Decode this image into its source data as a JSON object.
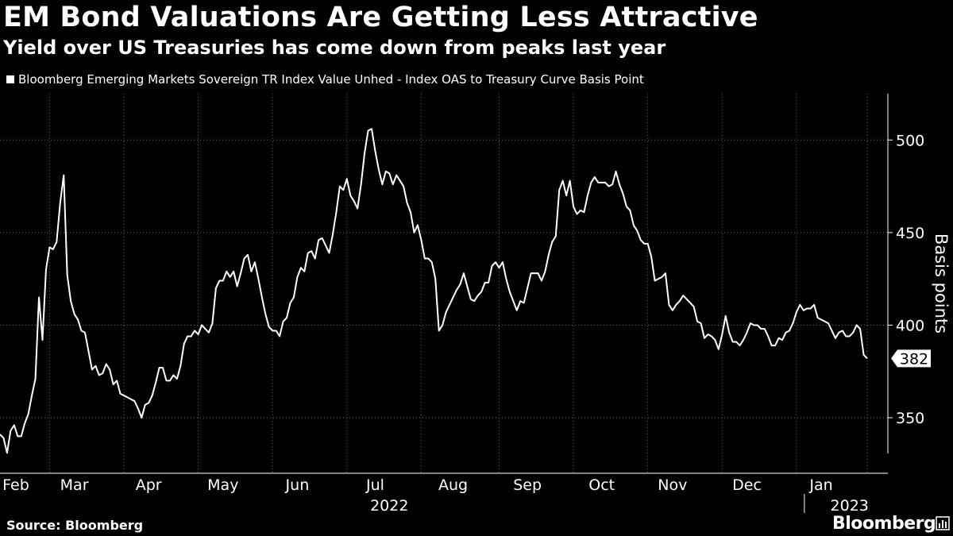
{
  "title": "EM Bond Valuations Are Getting Less Attractive",
  "subtitle": "Yield over US Treasuries has come down from peaks last year",
  "source": "Source: Bloomberg",
  "brand": "Bloomberg",
  "colors": {
    "background": "#000000",
    "line": "#ffffff",
    "grid": "#666666"
  },
  "chart_data": {
    "type": "line",
    "series": [
      {
        "name": "Bloomberg Emerging Markets Sovereign TR Index Value Unhed - Index OAS to Treasury Curve Basis Point",
        "values": [
          341,
          339,
          331,
          343,
          346,
          340,
          340,
          347,
          352,
          362,
          371,
          415,
          392,
          430,
          442,
          441,
          445,
          466,
          481,
          427,
          413,
          406,
          403,
          397,
          396,
          386,
          376,
          378,
          373,
          374,
          379,
          376,
          368,
          370,
          363,
          362,
          361,
          360,
          359,
          355,
          350,
          357,
          358,
          362,
          369,
          377,
          377,
          370,
          370,
          373,
          371,
          378,
          390,
          394,
          394,
          397,
          395,
          400,
          398,
          396,
          401,
          420,
          424,
          424,
          429,
          426,
          429,
          421,
          428,
          436,
          438,
          429,
          434,
          425,
          415,
          406,
          399,
          397,
          397,
          394,
          402,
          404,
          412,
          415,
          426,
          431,
          429,
          439,
          440,
          436,
          446,
          447,
          443,
          439,
          449,
          461,
          475,
          473,
          479,
          470,
          467,
          463,
          476,
          493,
          505,
          506,
          494,
          484,
          476,
          483,
          482,
          476,
          481,
          478,
          475,
          466,
          461,
          450,
          454,
          446,
          436,
          436,
          434,
          425,
          397,
          400,
          407,
          411,
          415,
          419,
          422,
          428,
          421,
          414,
          413,
          416,
          418,
          423,
          423,
          432,
          434,
          431,
          434,
          425,
          418,
          413,
          408,
          413,
          412,
          420,
          428,
          428,
          428,
          424,
          429,
          438,
          445,
          448,
          473,
          478,
          470,
          478,
          464,
          460,
          462,
          461,
          470,
          477,
          480,
          477,
          477,
          477,
          475,
          476,
          483,
          476,
          471,
          464,
          462,
          454,
          451,
          446,
          444,
          444,
          437,
          424,
          425,
          426,
          428,
          411,
          408,
          411,
          413,
          416,
          414,
          412,
          410,
          402,
          401,
          393,
          395,
          394,
          392,
          387,
          395,
          405,
          396,
          391,
          391,
          389,
          392,
          396,
          401,
          400,
          400,
          398,
          398,
          394,
          389,
          389,
          393,
          392,
          396,
          397,
          401,
          407,
          411,
          408,
          409,
          409,
          411,
          404,
          403,
          402,
          401,
          397,
          393,
          396,
          397,
          394,
          394,
          396,
          400,
          398,
          384,
          382
        ],
        "last_value_label": "382"
      }
    ],
    "ylabel": "Basis points",
    "ylim": [
      320,
      525
    ],
    "yticks": [
      350,
      400,
      450,
      500
    ],
    "ytick_labels": [
      "350",
      "400",
      "450",
      "500"
    ],
    "xtick_labels": [
      "Feb",
      "Mar",
      "Apr",
      "May",
      "Jun",
      "Jul",
      "Aug",
      "Sep",
      "Oct",
      "Nov",
      "Dec",
      "Jan"
    ],
    "xtick_index": [
      0,
      21,
      42,
      63,
      84,
      106,
      128,
      149,
      170,
      190,
      211,
      232
    ],
    "gridline_index": [
      14,
      35,
      56,
      77,
      98,
      119,
      141,
      162,
      183,
      204,
      225,
      245
    ],
    "year_labels": [
      "2022",
      "2023"
    ],
    "year_label_index": [
      110,
      240
    ],
    "year_divider_index": 225,
    "grid": true
  }
}
